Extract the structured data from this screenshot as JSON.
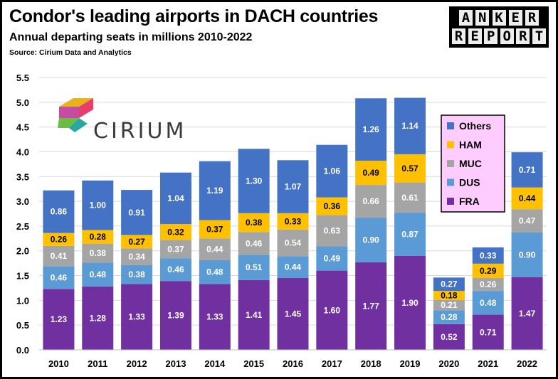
{
  "header": {
    "title": "Condor's leading airports in DACH countries",
    "subtitle": "Annual departing seats in millions 2010-2022",
    "source": "Source: Cirium Data and Analytics"
  },
  "logos": {
    "anker_top": [
      "A",
      "N",
      "K",
      "E",
      "R"
    ],
    "anker_bottom": [
      "R",
      "E",
      "P",
      "O",
      "R",
      "T"
    ],
    "cirium": "CIRIUM"
  },
  "chart_data": {
    "type": "bar",
    "stacked": true,
    "categories": [
      "2010",
      "2011",
      "2012",
      "2013",
      "2014",
      "2015",
      "2016",
      "2017",
      "2018",
      "2019",
      "2020",
      "2021",
      "2022"
    ],
    "ylim": [
      0,
      5.5
    ],
    "yticks": [
      "0.0",
      "0.5",
      "1.0",
      "1.5",
      "2.0",
      "2.5",
      "3.0",
      "3.5",
      "4.0",
      "4.5",
      "5.0",
      "5.5"
    ],
    "grid": true,
    "legend_position": "right",
    "series": [
      {
        "name": "FRA",
        "color": "#7030a0",
        "label_color": "#ffffff",
        "values": [
          1.23,
          1.28,
          1.33,
          1.39,
          1.33,
          1.41,
          1.45,
          1.6,
          1.77,
          1.9,
          0.52,
          0.71,
          1.47
        ]
      },
      {
        "name": "DUS",
        "color": "#5b9bd5",
        "label_color": "#ffffff",
        "values": [
          0.46,
          0.48,
          0.38,
          0.46,
          0.48,
          0.51,
          0.44,
          0.49,
          0.9,
          0.87,
          0.28,
          0.48,
          0.9
        ]
      },
      {
        "name": "MUC",
        "color": "#a5a5a5",
        "label_color": "#ffffff",
        "values": [
          0.41,
          0.38,
          0.34,
          0.37,
          0.44,
          0.46,
          0.54,
          0.63,
          0.66,
          0.61,
          0.21,
          0.26,
          0.47
        ]
      },
      {
        "name": "HAM",
        "color": "#ffc000",
        "label_color": "#000000",
        "values": [
          0.26,
          0.28,
          0.27,
          0.32,
          0.37,
          0.38,
          0.33,
          0.36,
          0.49,
          0.57,
          0.18,
          0.29,
          0.44
        ]
      },
      {
        "name": "Others",
        "color": "#4472c4",
        "label_color": "#ffffff",
        "values": [
          0.86,
          1.0,
          0.91,
          1.04,
          1.19,
          1.3,
          1.07,
          1.06,
          1.26,
          1.14,
          0.27,
          0.33,
          0.71
        ]
      }
    ],
    "value_labels": [
      [
        "1.23",
        "1.28",
        "1.33",
        "1.39",
        "1.33",
        "1.41",
        "1.45",
        "1.60",
        "1.77",
        "1.90",
        "0.52",
        "0.71",
        "1.47"
      ],
      [
        "0.46",
        "0.48",
        "0.38",
        "0.46",
        "0.48",
        "0.51",
        "0.44",
        "0.49",
        "0.90",
        "0.87",
        "0.28",
        "0.48",
        "0.90"
      ],
      [
        "0.41",
        "0.38",
        "0.34",
        "0.37",
        "0.44",
        "0.46",
        "0.54",
        "0.63",
        "0.66",
        "0.61",
        "0.21",
        "0.26",
        "0.47"
      ],
      [
        "0.26",
        "0.28",
        "0.27",
        "0.32",
        "0.37",
        "0.38",
        "0.33",
        "0.36",
        "0.49",
        "0.57",
        "0.18",
        "0.29",
        "0.44"
      ],
      [
        "0.86",
        "1.00",
        "0.91",
        "1.04",
        "1.19",
        "1.30",
        "1.07",
        "1.06",
        "1.26",
        "1.14",
        "0.27",
        "0.33",
        "0.71"
      ]
    ],
    "legend_order": [
      "Others",
      "HAM",
      "MUC",
      "DUS",
      "FRA"
    ],
    "legend_box_color": "#ffccff"
  }
}
